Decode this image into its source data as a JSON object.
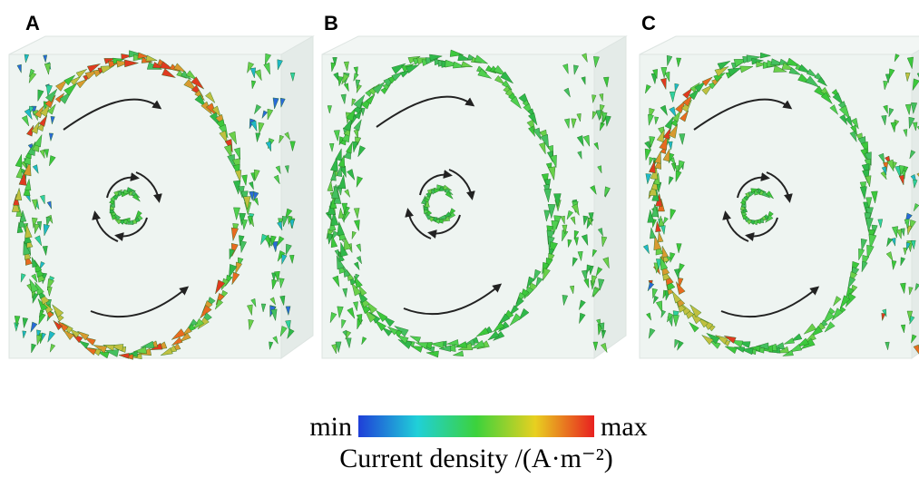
{
  "panels": [
    {
      "label": "A"
    },
    {
      "label": "B"
    },
    {
      "label": "C"
    }
  ],
  "colorbar": {
    "min_label": "min",
    "max_label": "max",
    "title": "Current density /(A·m⁻²)"
  }
}
